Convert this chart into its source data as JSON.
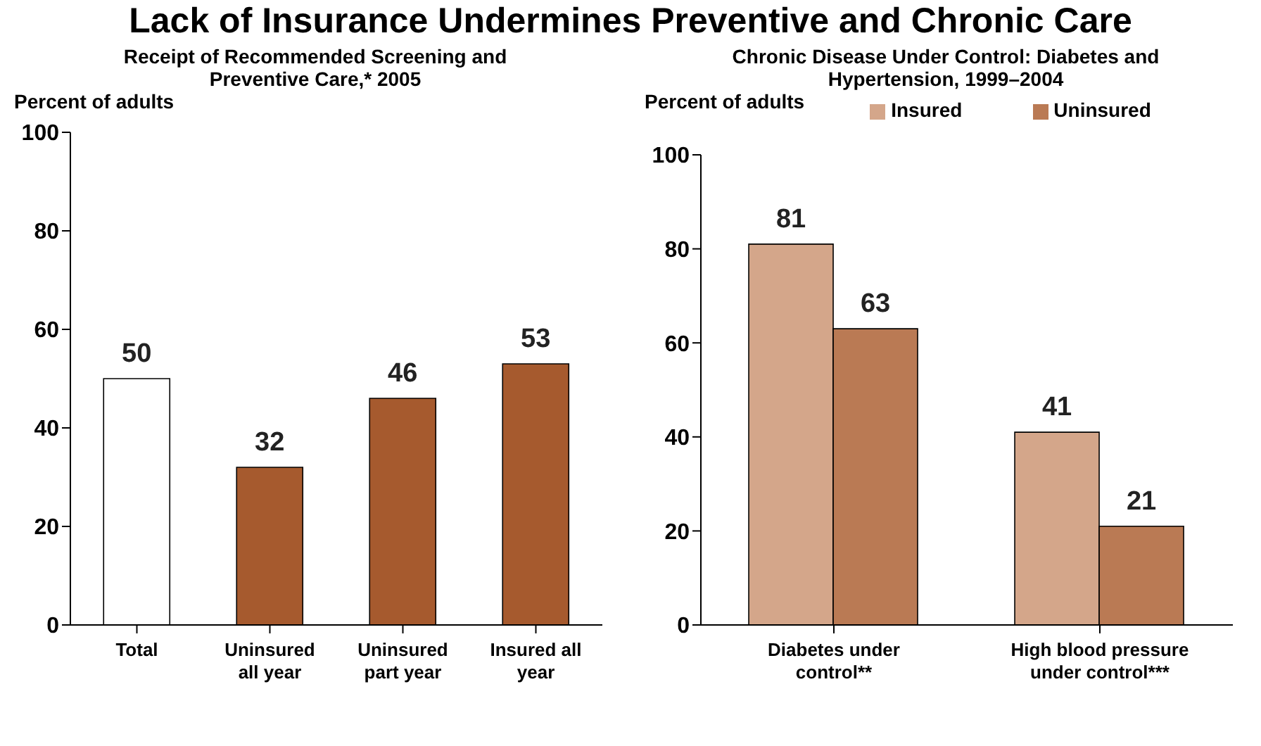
{
  "chart_data": [
    {
      "type": "bar",
      "title": "Lack of Insurance Undermines Preventive and Chronic Care",
      "subtitle": "Receipt of Recommended Screening and Preventive Care,* 2005",
      "ylabel": "Percent of adults",
      "categories": [
        "Total",
        "Uninsured all year",
        "Uninsured part year",
        "Insured all year"
      ],
      "values": [
        50,
        32,
        46,
        53
      ],
      "colors": [
        "#ffffff",
        "#a65a2e",
        "#a65a2e",
        "#a65a2e"
      ],
      "data_labels": true,
      "ylim": [
        0,
        100
      ],
      "yticks": [
        0,
        20,
        40,
        60,
        80,
        100
      ]
    },
    {
      "type": "bar",
      "title": "Chronic Disease Under Control: Diabetes and Hypertension, 1999–2004",
      "ylabel": "Percent of adults",
      "categories": [
        "Diabetes under control**",
        "High blood pressure under control***"
      ],
      "series": [
        {
          "name": "Insured",
          "color": "#d4a68a",
          "values": [
            81,
            41
          ]
        },
        {
          "name": "Uninsured",
          "color": "#ba7a54",
          "values": [
            63,
            21
          ]
        }
      ],
      "data_labels": true,
      "legend": "top",
      "ylim": [
        0,
        100
      ],
      "yticks": [
        0,
        20,
        40,
        60,
        80,
        100
      ]
    }
  ]
}
